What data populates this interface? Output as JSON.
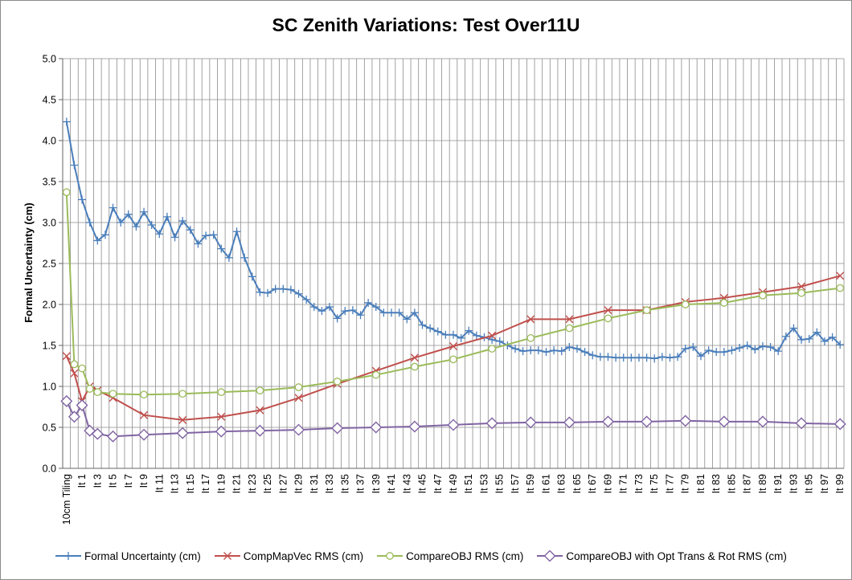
{
  "chart_data": {
    "type": "line",
    "title": "SC Zenith Variations: Test Over11U",
    "xlabel": "",
    "ylabel": "Formal Uncertainty (cm)",
    "ylim": [
      0,
      5
    ],
    "yticks": [
      "0.0",
      "0.5",
      "1.0",
      "1.5",
      "2.0",
      "2.5",
      "3.0",
      "3.5",
      "4.0",
      "4.5",
      "5.0"
    ],
    "ytick_values": [
      0,
      0.5,
      1,
      1.5,
      2,
      2.5,
      3,
      3.5,
      4,
      4.5,
      5
    ],
    "grid": true,
    "legend_position": "bottom",
    "n_points": 101,
    "x_labeled_indices": [
      0,
      2,
      4,
      6,
      8,
      10,
      12,
      14,
      16,
      18,
      20,
      22,
      24,
      26,
      28,
      30,
      32,
      34,
      36,
      38,
      40,
      42,
      44,
      46,
      48,
      50,
      52,
      54,
      56,
      58,
      60,
      62,
      64,
      66,
      68,
      70,
      72,
      74,
      76,
      78,
      80,
      82,
      84,
      86,
      88,
      90,
      92,
      94,
      96,
      98,
      100
    ],
    "x_tick_labels": [
      "10cm Tiling",
      "It 1",
      "It 3",
      "It 5",
      "It 7",
      "It 9",
      "It 11",
      "It 13",
      "It 15",
      "It 17",
      "It 19",
      "It 21",
      "It 23",
      "It 25",
      "It 27",
      "It 29",
      "It 31",
      "It 33",
      "It 35",
      "It 37",
      "It 39",
      "It 41",
      "It 43",
      "It 45",
      "It 47",
      "It 49",
      "It 51",
      "It 53",
      "It 55",
      "It 57",
      "It 59",
      "It 61",
      "It 63",
      "It 65",
      "It 67",
      "It 69",
      "It 71",
      "It 73",
      "It 75",
      "It 77",
      "It 79",
      "It 81",
      "It 83",
      "It 85",
      "It 87",
      "It 89",
      "It 91",
      "It 93",
      "It 95",
      "It 97",
      "It 99"
    ],
    "series": [
      {
        "name": "Formal Uncertainty (cm)",
        "color": "#4a7ebb",
        "marker": "plus",
        "x": [
          0,
          1,
          2,
          3,
          4,
          5,
          6,
          7,
          8,
          9,
          10,
          11,
          12,
          13,
          14,
          15,
          16,
          17,
          18,
          19,
          20,
          21,
          22,
          23,
          24,
          25,
          26,
          27,
          28,
          29,
          30,
          31,
          32,
          33,
          34,
          35,
          36,
          37,
          38,
          39,
          40,
          41,
          42,
          43,
          44,
          45,
          46,
          47,
          48,
          49,
          50,
          51,
          52,
          53,
          54,
          55,
          56,
          57,
          58,
          59,
          60,
          61,
          62,
          63,
          64,
          65,
          66,
          67,
          68,
          69,
          70,
          71,
          72,
          73,
          74,
          75,
          76,
          77,
          78,
          79,
          80,
          81,
          82,
          83,
          84,
          85,
          86,
          87,
          88,
          89,
          90,
          91,
          92,
          93,
          94,
          95,
          96,
          97,
          98,
          99,
          100
        ],
        "values": [
          4.23,
          3.7,
          3.28,
          3.0,
          2.78,
          2.85,
          3.18,
          3.0,
          3.1,
          2.95,
          3.13,
          2.97,
          2.86,
          3.07,
          2.82,
          3.02,
          2.91,
          2.74,
          2.84,
          2.85,
          2.68,
          2.57,
          2.89,
          2.57,
          2.34,
          2.15,
          2.14,
          2.19,
          2.19,
          2.18,
          2.13,
          2.06,
          1.97,
          1.92,
          1.97,
          1.83,
          1.92,
          1.93,
          1.87,
          2.02,
          1.97,
          1.9,
          1.9,
          1.9,
          1.82,
          1.9,
          1.75,
          1.71,
          1.67,
          1.63,
          1.63,
          1.59,
          1.68,
          1.62,
          1.6,
          1.57,
          1.55,
          1.5,
          1.46,
          1.43,
          1.44,
          1.44,
          1.42,
          1.44,
          1.43,
          1.48,
          1.46,
          1.42,
          1.38,
          1.36,
          1.36,
          1.35,
          1.35,
          1.35,
          1.35,
          1.35,
          1.34,
          1.36,
          1.35,
          1.36,
          1.46,
          1.48,
          1.37,
          1.44,
          1.42,
          1.42,
          1.44,
          1.47,
          1.5,
          1.45,
          1.49,
          1.48,
          1.43,
          1.61,
          1.71,
          1.57,
          1.58,
          1.66,
          1.55,
          1.6,
          1.51
        ]
      },
      {
        "name": "CompMapVec RMS (cm)",
        "color": "#c0504d",
        "marker": "x",
        "x": [
          0,
          1,
          2,
          3,
          4,
          6,
          10,
          15,
          20,
          25,
          30,
          35,
          40,
          45,
          50,
          55,
          60,
          65,
          70,
          75,
          80,
          85,
          90,
          95,
          100
        ],
        "values": [
          1.37,
          1.16,
          0.82,
          1.0,
          0.95,
          0.86,
          0.65,
          0.59,
          0.63,
          0.71,
          0.86,
          1.03,
          1.19,
          1.35,
          1.49,
          1.62,
          1.82,
          1.82,
          1.93,
          1.93,
          2.03,
          2.08,
          2.15,
          2.22,
          2.35
        ]
      },
      {
        "name": "CompareOBJ RMS (cm)",
        "color": "#9bbb59",
        "marker": "circle",
        "x": [
          0,
          1,
          2,
          3,
          4,
          6,
          10,
          15,
          20,
          25,
          30,
          35,
          40,
          45,
          50,
          55,
          60,
          65,
          70,
          75,
          80,
          85,
          90,
          95,
          100
        ],
        "values": [
          3.37,
          1.27,
          1.22,
          0.97,
          0.93,
          0.91,
          0.9,
          0.91,
          0.93,
          0.95,
          0.99,
          1.06,
          1.14,
          1.24,
          1.33,
          1.46,
          1.59,
          1.71,
          1.83,
          1.93,
          2.0,
          2.02,
          2.11,
          2.14,
          2.2
        ]
      },
      {
        "name": "CompareOBJ with Opt Trans & Rot RMS (cm)",
        "color": "#8064a2",
        "marker": "diamond",
        "x": [
          0,
          1,
          2,
          3,
          4,
          6,
          10,
          15,
          20,
          25,
          30,
          35,
          40,
          45,
          50,
          55,
          60,
          65,
          70,
          75,
          80,
          85,
          90,
          95,
          100
        ],
        "values": [
          0.82,
          0.63,
          0.77,
          0.46,
          0.42,
          0.39,
          0.41,
          0.43,
          0.45,
          0.46,
          0.47,
          0.49,
          0.5,
          0.51,
          0.53,
          0.55,
          0.56,
          0.56,
          0.57,
          0.57,
          0.58,
          0.57,
          0.57,
          0.55,
          0.54
        ]
      }
    ]
  }
}
